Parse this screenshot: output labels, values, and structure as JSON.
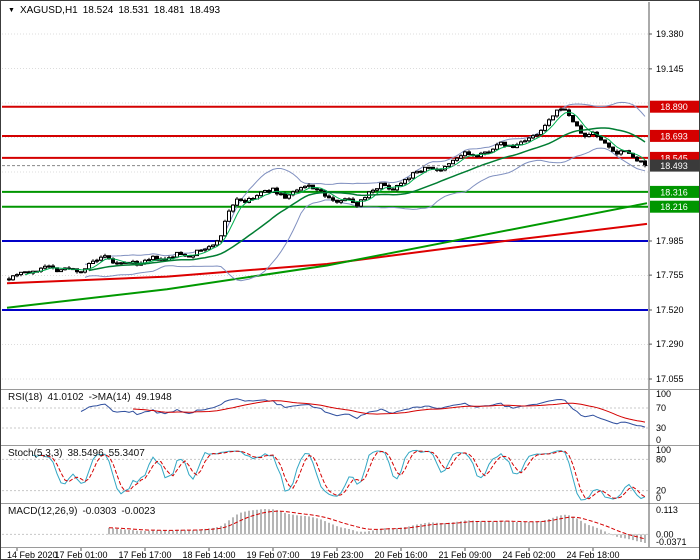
{
  "icons": {
    "symbol_marker": "▼"
  },
  "quote_bar": {
    "symbol_tf": "XAGUSD,H1",
    "open": "18.524",
    "high": "18.531",
    "low": "18.481",
    "close": "18.493"
  },
  "main_chart": {
    "grid": {
      "top_price": 19.38,
      "step": 0.2325,
      "count": 11
    },
    "visible_ticks": [
      {
        "label": "19.380",
        "price": 19.38
      },
      {
        "label": "19.145",
        "price": 19.145
      },
      {
        "label": "17.985",
        "price": 17.985
      },
      {
        "label": "17.755",
        "price": 17.755
      },
      {
        "label": "17.520",
        "price": 17.52
      },
      {
        "label": "17.290",
        "price": 17.29
      },
      {
        "label": "17.055",
        "price": 17.055
      }
    ],
    "levels": [
      {
        "label": "18.890",
        "price": 18.89,
        "color": "#d40000",
        "kind": "resistance"
      },
      {
        "label": "18.693",
        "price": 18.693,
        "color": "#d40000",
        "kind": "resistance"
      },
      {
        "label": "18.545",
        "price": 18.545,
        "color": "#d40000",
        "kind": "resistance"
      },
      {
        "label": "18.316",
        "price": 18.316,
        "color": "#009600",
        "kind": "support"
      },
      {
        "label": "18.216",
        "price": 18.216,
        "color": "#009600",
        "kind": "support"
      }
    ],
    "plain_levels": [
      {
        "price": 17.985,
        "color": "#0000c8"
      },
      {
        "price": 17.52,
        "color": "#0000c8"
      }
    ],
    "current_price": {
      "label": "18.493",
      "price": 18.493,
      "box_color": "#3a3a3a"
    }
  },
  "chart_data": {
    "type": "candlestick",
    "symbol": "XAGUSD",
    "timeframe": "H1",
    "title": "XAGUSD,H1 18.524 18.531 18.481 18.493",
    "bars": 160,
    "seed": 7,
    "noise": 0.012,
    "wick": 0.014,
    "price_anchors": [
      [
        0,
        17.735
      ],
      [
        3,
        17.78
      ],
      [
        6,
        17.77
      ],
      [
        9,
        17.825
      ],
      [
        12,
        17.79
      ],
      [
        15,
        17.8
      ],
      [
        18,
        17.78
      ],
      [
        21,
        17.845
      ],
      [
        24,
        17.875
      ],
      [
        27,
        17.825
      ],
      [
        30,
        17.84
      ],
      [
        33,
        17.83
      ],
      [
        36,
        17.87
      ],
      [
        39,
        17.85
      ],
      [
        42,
        17.9
      ],
      [
        45,
        17.885
      ],
      [
        48,
        17.925
      ],
      [
        51,
        17.95
      ],
      [
        53,
        18.03
      ],
      [
        55,
        18.19
      ],
      [
        57,
        18.27
      ],
      [
        59,
        18.25
      ],
      [
        61,
        18.27
      ],
      [
        63,
        18.31
      ],
      [
        66,
        18.33
      ],
      [
        69,
        18.28
      ],
      [
        72,
        18.325
      ],
      [
        75,
        18.36
      ],
      [
        78,
        18.315
      ],
      [
        81,
        18.25
      ],
      [
        84,
        18.275
      ],
      [
        87,
        18.23
      ],
      [
        90,
        18.315
      ],
      [
        93,
        18.365
      ],
      [
        96,
        18.335
      ],
      [
        99,
        18.405
      ],
      [
        102,
        18.45
      ],
      [
        105,
        18.485
      ],
      [
        108,
        18.455
      ],
      [
        111,
        18.525
      ],
      [
        114,
        18.58
      ],
      [
        117,
        18.55
      ],
      [
        120,
        18.595
      ],
      [
        123,
        18.64
      ],
      [
        126,
        18.615
      ],
      [
        129,
        18.67
      ],
      [
        132,
        18.695
      ],
      [
        134,
        18.76
      ],
      [
        136,
        18.825
      ],
      [
        138,
        18.885
      ],
      [
        140,
        18.835
      ],
      [
        142,
        18.75
      ],
      [
        144,
        18.685
      ],
      [
        146,
        18.72
      ],
      [
        148,
        18.665
      ],
      [
        150,
        18.62
      ],
      [
        152,
        18.575
      ],
      [
        154,
        18.605
      ],
      [
        156,
        18.55
      ],
      [
        158,
        18.523
      ],
      [
        159,
        18.493
      ]
    ],
    "trend_lines": [
      {
        "name": "long-ma-red",
        "color": "#dd0000",
        "width": 2,
        "points": [
          [
            0,
            17.7
          ],
          [
            0.25,
            17.745
          ],
          [
            0.5,
            17.83
          ],
          [
            0.75,
            17.97
          ],
          [
            1,
            18.1
          ]
        ]
      },
      {
        "name": "long-ma-green",
        "color": "#009900",
        "width": 2,
        "points": [
          [
            0,
            17.535
          ],
          [
            0.25,
            17.66
          ],
          [
            0.5,
            17.82
          ],
          [
            0.75,
            18.03
          ],
          [
            1,
            18.24
          ]
        ]
      }
    ],
    "overlays": {
      "sma_fast": 5,
      "sma_slow": 21,
      "boll_period": 20,
      "boll_dev": 2,
      "colors": {
        "sma_fast": "#00b050",
        "sma_slow": "#007d32",
        "boll": "#8090c0"
      }
    },
    "x_labels": [
      "14 Feb 2020",
      "17 Feb 01:00",
      "17 Feb 17:00",
      "18 Feb 14:00",
      "19 Feb 07:00",
      "19 Feb 23:00",
      "20 Feb 16:00",
      "21 Feb 09:00",
      "24 Feb 02:00",
      "24 Feb 18:00"
    ],
    "x_label_bars": [
      2,
      18,
      34,
      50,
      66,
      82,
      98,
      114,
      130,
      146
    ]
  },
  "indicators": {
    "rsi": {
      "name": "RSI(18)",
      "value": "41.0102",
      "ma_name": "->MA(14)",
      "ma_value": "49.1948",
      "period": 18,
      "ma_period": 14,
      "level_lines": [
        70,
        30
      ],
      "axis": [
        {
          "label": "100",
          "value": 100
        },
        {
          "label": "70",
          "value": 70
        },
        {
          "label": "30",
          "value": 30
        },
        {
          "label": "0",
          "value": 0
        }
      ],
      "line_color": "#2f4f9e",
      "ma_color": "#d40000"
    },
    "stoch": {
      "name": "Stoch(5,3,3)",
      "k": "38.5496",
      "d": "55.3407",
      "k_period": 5,
      "slowing": 3,
      "d_period": 3,
      "level_lines": [
        80,
        20
      ],
      "axis": [
        {
          "label": "100",
          "value": 100
        },
        {
          "label": "80",
          "value": 80
        },
        {
          "label": "20",
          "value": 20
        },
        {
          "label": "0",
          "value": 0
        }
      ],
      "k_color": "#33a7c4",
      "d_color": "#d40000"
    },
    "macd": {
      "name": "MACD(12,26,9)",
      "main": "-0.0303",
      "signal": "-0.0023",
      "fast": 12,
      "slow": 26,
      "signal_period": 9,
      "axis": {
        "top": "0.113",
        "zero": "0.00",
        "bottom": "-0.0371"
      },
      "hist_color": "#b6b6b6",
      "signal_color": "#d40000"
    }
  }
}
